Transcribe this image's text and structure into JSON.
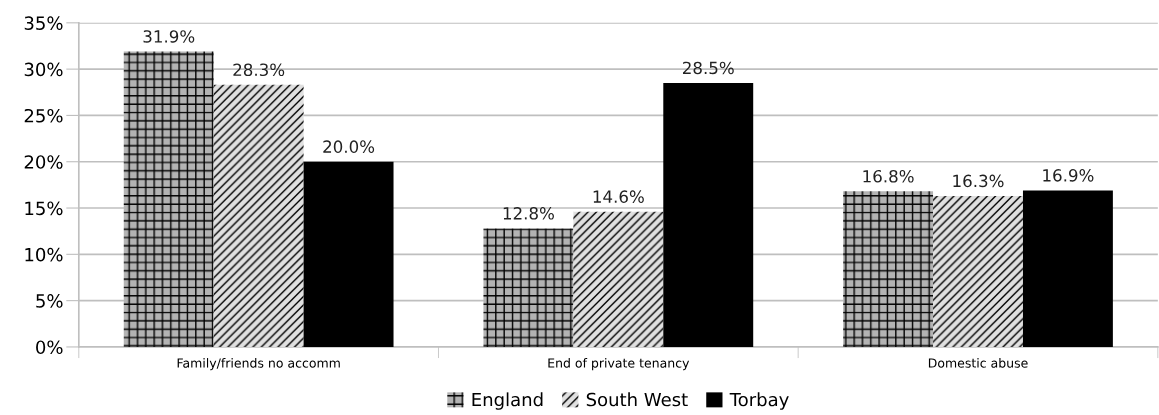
{
  "chart_data": {
    "type": "bar",
    "categories": [
      "Family/friends no accomm",
      "End of private tenancy",
      "Domestic abuse"
    ],
    "series": [
      {
        "name": "England",
        "color": "#b3b3b3",
        "values": [
          31.9,
          12.8,
          16.8
        ],
        "value_labels": [
          "31.9%",
          "12.8%",
          "16.8%"
        ]
      },
      {
        "name": "South West",
        "color": "#e0e0e0",
        "values": [
          28.3,
          14.6,
          16.3
        ],
        "value_labels": [
          "28.3%",
          "14.6%",
          "16.3%"
        ]
      },
      {
        "name": "Torbay",
        "color": "#000000",
        "values": [
          20.0,
          28.5,
          16.9
        ],
        "value_labels": [
          "20.0%",
          "28.5%",
          "16.9%"
        ]
      }
    ],
    "ylim": [
      0,
      35
    ],
    "yticks": [
      {
        "value": 0,
        "label": "0%"
      },
      {
        "value": 5,
        "label": "5%"
      },
      {
        "value": 10,
        "label": "10%"
      },
      {
        "value": 15,
        "label": "15%"
      },
      {
        "value": 20,
        "label": "20%"
      },
      {
        "value": 25,
        "label": "25%"
      },
      {
        "value": 30,
        "label": "30%"
      },
      {
        "value": 35,
        "label": "35%"
      }
    ],
    "grid": "y",
    "legend": "bottom"
  }
}
